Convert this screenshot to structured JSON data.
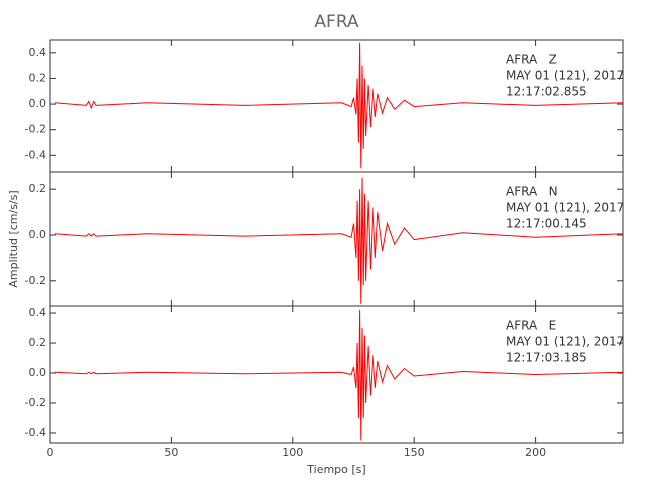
{
  "chart_data": [
    {
      "type": "line",
      "title": "AFRA",
      "annotations": [
        "AFRA   Z",
        "MAY 01 (121), 2017",
        "12:17:02.855"
      ],
      "xlim": [
        0,
        236
      ],
      "ylim": [
        -0.53,
        0.5
      ],
      "yticks": [
        {
          "value": 0.4,
          "label": "0.4"
        },
        {
          "value": 0.2,
          "label": "0.2"
        },
        {
          "value": 0,
          "label": "0.0"
        },
        {
          "value": -0.2,
          "label": "-0.2"
        },
        {
          "value": -0.4,
          "label": "-0.4"
        }
      ],
      "x": [
        2,
        15,
        16,
        17,
        18,
        19,
        40,
        80,
        120,
        124,
        125,
        126,
        126.5,
        127,
        127.5,
        128,
        128.5,
        129,
        129.5,
        130,
        131,
        132,
        133,
        134,
        135,
        137,
        139,
        142,
        146,
        150,
        170,
        200,
        236
      ],
      "series": [
        {
          "name": "AFRA Z",
          "color": "#ff0000",
          "values": [
            0.01,
            -0.01,
            0.02,
            -0.03,
            0.02,
            -0.01,
            0.01,
            -0.01,
            0.01,
            -0.02,
            0.05,
            -0.08,
            0.2,
            -0.3,
            0.48,
            -0.5,
            0.3,
            -0.35,
            0.2,
            -0.25,
            0.15,
            -0.18,
            0.12,
            -0.1,
            0.08,
            -0.07,
            0.05,
            -0.04,
            0.03,
            -0.02,
            0.01,
            -0.01,
            0.01
          ]
        }
      ]
    },
    {
      "type": "line",
      "ylabel": "Amplitud [cm/s/s]",
      "annotations": [
        "AFRA   N",
        "MAY 01 (121), 2017",
        "12:17:00.145"
      ],
      "xlim": [
        0,
        236
      ],
      "ylim": [
        -0.31,
        0.275
      ],
      "yticks": [
        {
          "value": 0.2,
          "label": "0.2"
        },
        {
          "value": 0,
          "label": "0.0"
        },
        {
          "value": -0.2,
          "label": "-0.2"
        }
      ],
      "x": [
        2,
        15,
        16,
        17,
        18,
        19,
        40,
        80,
        120,
        124,
        125,
        126,
        126.5,
        127,
        127.5,
        128,
        128.5,
        129,
        129.5,
        130,
        131,
        132,
        133,
        134,
        135,
        137,
        139,
        142,
        146,
        150,
        170,
        200,
        236
      ],
      "series": [
        {
          "name": "AFRA N",
          "color": "#ff0000",
          "values": [
            0.005,
            -0.005,
            0.005,
            -0.005,
            0.005,
            -0.005,
            0.005,
            -0.005,
            0.005,
            -0.01,
            0.05,
            -0.1,
            0.15,
            -0.2,
            0.2,
            -0.3,
            0.25,
            -0.22,
            0.18,
            -0.2,
            0.15,
            -0.15,
            0.12,
            -0.1,
            0.1,
            -0.07,
            0.05,
            -0.04,
            0.03,
            -0.02,
            0.01,
            -0.01,
            0.005
          ]
        }
      ]
    },
    {
      "type": "line",
      "xlabel": "Tiempo [s]",
      "annotations": [
        "AFRA   E",
        "MAY 01 (121), 2017",
        "12:17:03.185"
      ],
      "xlim": [
        0,
        236
      ],
      "ylim": [
        -0.467,
        0.447
      ],
      "xticks": [
        0,
        50,
        100,
        150,
        200
      ],
      "yticks": [
        {
          "value": 0.4,
          "label": "0.4"
        },
        {
          "value": 0.2,
          "label": "0.2"
        },
        {
          "value": 0,
          "label": "0.0"
        },
        {
          "value": -0.2,
          "label": "-0.2"
        },
        {
          "value": -0.4,
          "label": "-0.4"
        }
      ],
      "x": [
        2,
        15,
        16,
        17,
        18,
        19,
        40,
        80,
        120,
        124,
        125,
        126,
        126.5,
        127,
        127.5,
        128,
        128.5,
        129,
        129.5,
        130,
        131,
        132,
        133,
        134,
        135,
        137,
        139,
        142,
        146,
        150,
        170,
        200,
        236
      ],
      "series": [
        {
          "name": "AFRA E",
          "color": "#ff0000",
          "values": [
            0.005,
            -0.005,
            0.005,
            -0.005,
            0.005,
            -0.005,
            0.005,
            -0.005,
            0.005,
            -0.01,
            0.04,
            -0.1,
            0.2,
            -0.3,
            0.42,
            -0.45,
            0.3,
            -0.3,
            0.25,
            -0.2,
            0.18,
            -0.15,
            0.12,
            -0.1,
            0.08,
            -0.06,
            0.05,
            -0.04,
            0.03,
            -0.02,
            0.01,
            -0.01,
            0.005
          ]
        }
      ]
    }
  ]
}
